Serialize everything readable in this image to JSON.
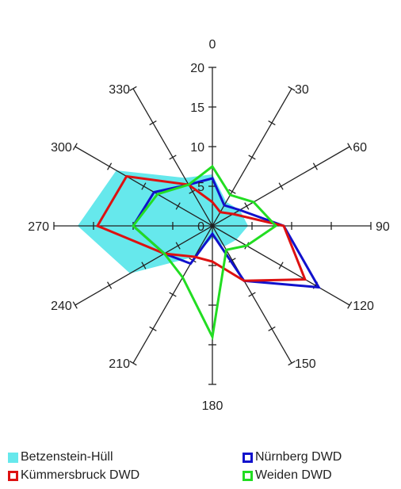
{
  "chart_data": {
    "type": "radar",
    "title": "",
    "directions": [
      0,
      30,
      60,
      90,
      120,
      150,
      180,
      210,
      240,
      270,
      300,
      330
    ],
    "direction_labels": [
      "0",
      "30",
      "60",
      "90",
      "120",
      "150",
      "180",
      "210",
      "240",
      "270",
      "300",
      "330"
    ],
    "radial_ticks": [
      "0",
      "5",
      "10",
      "15",
      "20"
    ],
    "radial_range": [
      0,
      20
    ],
    "legend_position": "bottom",
    "series": [
      {
        "name": "Betzenstein-Hüll",
        "color": "#66e8ec",
        "style": "filled",
        "values": [
          6.5,
          3.5,
          4.0,
          4.5,
          3.5,
          3.0,
          1.5,
          4.5,
          12.0,
          17.0,
          14.0,
          7.0
        ]
      },
      {
        "name": "Nürnberg DWD",
        "color": "#1111cc",
        "style": "line",
        "values": [
          6.0,
          3.0,
          4.0,
          9.0,
          15.5,
          8.0,
          1.0,
          5.5,
          7.0,
          10.0,
          8.5,
          6.0
        ]
      },
      {
        "name": "Kümmersbruck DWD",
        "color": "#dd1111",
        "style": "line",
        "values": [
          3.0,
          2.0,
          3.0,
          9.0,
          13.5,
          8.0,
          4.5,
          4.5,
          7.0,
          14.5,
          12.5,
          6.0
        ]
      },
      {
        "name": "Weiden DWD",
        "color": "#22dd22",
        "style": "line",
        "values": [
          7.5,
          4.5,
          6.0,
          8.0,
          5.0,
          3.5,
          14.0,
          7.5,
          7.0,
          10.0,
          8.0,
          6.0
        ]
      }
    ]
  }
}
